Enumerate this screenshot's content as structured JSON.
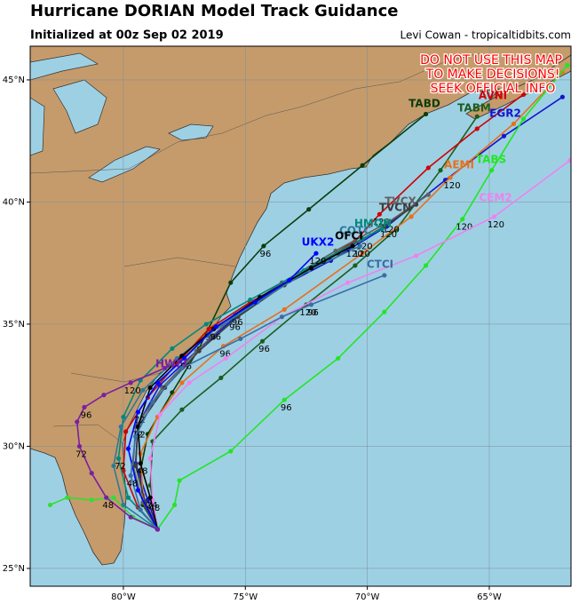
{
  "header": {
    "title": "Hurricane DORIAN Model Track Guidance",
    "subtitle": "Initialized at 00z Sep 02 2019",
    "credit": "Levi Cowan - tropicaltidbits.com"
  },
  "warning": [
    "DO NOT USE THIS MAP",
    "TO MAKE DECISIONS!",
    "SEEK OFFICIAL INFO"
  ],
  "map": {
    "xlim": [
      -83.82,
      -61.65
    ],
    "ylim": [
      24.27,
      46.38
    ],
    "xticks": [
      {
        "value": -80,
        "label": "80°W"
      },
      {
        "value": -75,
        "label": "75°W"
      },
      {
        "value": -70,
        "label": "70°W"
      },
      {
        "value": -65,
        "label": "65°W"
      }
    ],
    "yticks": [
      {
        "value": 25,
        "label": "25°N"
      },
      {
        "value": 30,
        "label": "30°N"
      },
      {
        "value": 35,
        "label": "35°N"
      },
      {
        "value": 40,
        "label": "40°N"
      },
      {
        "value": 45,
        "label": "45°N"
      }
    ],
    "grid": true,
    "tracks": [
      {
        "name": "TABD",
        "color": "#0b3d0b",
        "lon": [
          -78.6,
          -79.2,
          -79.3,
          -79.0,
          -78.0,
          -76.9,
          -75.6,
          -74.25,
          -72.4,
          -70.2,
          -67.6
        ],
        "lat": [
          26.6,
          27.6,
          29.0,
          30.5,
          32.2,
          34.0,
          36.7,
          38.2,
          39.7,
          41.5,
          43.6
        ],
        "hours": [
          null,
          null,
          null,
          null,
          null,
          null,
          null,
          96,
          null,
          null,
          null
        ]
      },
      {
        "name": "TABM",
        "color": "#1b5e20",
        "lon": [
          -78.6,
          -78.9,
          -78.8,
          -77.6,
          -76.0,
          -74.3,
          -72.5,
          -70.5,
          -68.8,
          -67.0,
          -65.5
        ],
        "lat": [
          26.6,
          28.4,
          30.2,
          31.5,
          32.8,
          34.3,
          35.8,
          37.4,
          38.9,
          41.3,
          43.5
        ],
        "hours": [
          null,
          null,
          null,
          null,
          null,
          96,
          120,
          null,
          null,
          null,
          null
        ]
      },
      {
        "name": "AVNI",
        "color": "#d00000",
        "lon": [
          -78.6,
          -79.4,
          -80.0,
          -79.9,
          -79.0,
          -77.8,
          -76.5,
          -74.8,
          -72.6,
          -70.5,
          -69.5,
          -67.5,
          -65.5,
          -63.6
        ],
        "lat": [
          26.6,
          27.5,
          29.0,
          30.6,
          32.0,
          33.4,
          34.8,
          35.9,
          37.1,
          38.4,
          39.5,
          41.4,
          43.0,
          44.4
        ],
        "hours": [
          null,
          null,
          null,
          null,
          null,
          null,
          96,
          null,
          null,
          null,
          120,
          null,
          null,
          null
        ]
      },
      {
        "name": "EGR2",
        "color": "#1414d0",
        "lon": [
          -78.6,
          -79.0,
          -79.5,
          -79.4,
          -78.5,
          -77.0,
          -75.5,
          -73.8,
          -71.5,
          -69.2,
          -66.8,
          -64.4,
          -62.0
        ],
        "lat": [
          26.6,
          27.8,
          29.3,
          30.9,
          32.5,
          33.9,
          35.2,
          36.4,
          37.6,
          39.0,
          40.9,
          42.7,
          44.3
        ],
        "hours": [
          null,
          null,
          null,
          null,
          null,
          null,
          96,
          null,
          null,
          120,
          null,
          null,
          null
        ]
      },
      {
        "name": "AEMI",
        "color": "#e8701a",
        "lon": [
          -78.6,
          -79.2,
          -79.3,
          -78.6,
          -77.6,
          -75.9,
          -73.4,
          -70.2,
          -68.2,
          -66.6,
          -64.0,
          -62.0
        ],
        "lat": [
          26.6,
          28.0,
          29.7,
          31.2,
          32.6,
          34.1,
          35.6,
          37.9,
          39.4,
          41.0,
          43.2,
          45.3
        ],
        "hours": [
          null,
          null,
          null,
          null,
          null,
          96,
          null,
          null,
          null,
          120,
          null,
          null
        ]
      },
      {
        "name": "TABS",
        "color": "#22e622",
        "lon": [
          -78.6,
          -77.9,
          -77.7,
          -75.6,
          -73.4,
          -71.2,
          -69.3,
          -67.6,
          -66.1,
          -64.9,
          -63.6,
          -61.8
        ],
        "lat": [
          26.6,
          27.6,
          28.6,
          29.8,
          31.9,
          33.6,
          35.5,
          37.4,
          39.3,
          41.3,
          43.4,
          45.6
        ],
        "hours": [
          null,
          null,
          null,
          null,
          96,
          null,
          null,
          null,
          120,
          null,
          null,
          null
        ]
      },
      {
        "color": "#33dd33",
        "lon": [
          -78.6,
          -79.6,
          -80.4,
          -81.3,
          -82.3,
          -83.0
        ],
        "lat": [
          26.6,
          27.1,
          27.9,
          27.8,
          27.9,
          27.6
        ],
        "hours": [
          null,
          null,
          null,
          null,
          null,
          null
        ]
      },
      {
        "name": "CEM2",
        "color": "#ee82ee",
        "lon": [
          -78.6,
          -78.8,
          -78.9,
          -78.5,
          -77.3,
          -75.8,
          -73.5,
          -70.8,
          -68.0,
          -64.8,
          -61.7
        ],
        "lat": [
          26.6,
          27.8,
          29.5,
          31.3,
          32.6,
          33.6,
          35.3,
          36.7,
          37.8,
          39.4,
          41.7
        ],
        "hours": [
          null,
          48,
          null,
          null,
          null,
          null,
          null,
          null,
          null,
          120,
          null
        ]
      },
      {
        "name": "TVCX",
        "color": "#606060",
        "lon": [
          -78.6,
          -79.2,
          -79.6,
          -79.5,
          -78.4,
          -77.0,
          -75.4,
          -73.5,
          -71.3,
          -69.1,
          -67.5
        ],
        "lat": [
          26.6,
          27.7,
          29.2,
          30.8,
          32.4,
          33.9,
          35.4,
          36.7,
          38.0,
          39.2,
          40.3
        ],
        "hours": [
          null,
          null,
          null,
          72,
          null,
          null,
          96,
          null,
          null,
          120,
          null
        ]
      },
      {
        "name": "TVCN",
        "color": "#3c3c3c",
        "lon": [
          -78.6,
          -79.1,
          -79.5,
          -79.4,
          -78.3,
          -76.9,
          -75.3,
          -73.4,
          -71.2,
          -69.3,
          -68.0
        ],
        "lat": [
          26.6,
          27.7,
          29.2,
          30.8,
          32.4,
          33.9,
          35.3,
          36.6,
          37.9,
          39.0,
          39.9
        ],
        "hours": [
          null,
          null,
          null,
          null,
          null,
          null,
          null,
          null,
          null,
          null,
          null
        ]
      },
      {
        "name": "HMON",
        "color": "#00897b",
        "lon": [
          -78.6,
          -79.8,
          -80.2,
          -80.0,
          -79.3,
          -78.0,
          -76.6,
          -74.8,
          -72.6,
          -70.2,
          -69.4
        ],
        "lat": [
          26.6,
          27.9,
          29.5,
          31.2,
          32.7,
          34.0,
          35.0,
          36.0,
          37.2,
          38.5,
          38.9
        ],
        "hours": [
          null,
          null,
          72,
          null,
          null,
          null,
          null,
          null,
          null,
          120,
          null
        ]
      },
      {
        "name": "COTC",
        "color": "#2b7a9b",
        "lon": [
          -78.6,
          -80.0,
          -80.4,
          -80.1,
          -79.2,
          -77.8,
          -76.5,
          -74.5,
          -72.4,
          -70.3
        ],
        "lat": [
          26.6,
          27.6,
          29.2,
          30.8,
          32.3,
          33.6,
          34.6,
          35.9,
          37.2,
          38.2
        ],
        "hours": [
          null,
          null,
          null,
          null,
          null,
          null,
          null,
          null,
          null,
          120
        ]
      },
      {
        "name": "OFCI",
        "color": "#000000",
        "lon": [
          -78.6,
          -78.9,
          -79.3,
          -79.4,
          -78.9,
          -77.6,
          -76.3,
          -74.4,
          -72.3,
          -70.6
        ],
        "lat": [
          26.6,
          27.9,
          29.3,
          30.8,
          32.4,
          33.7,
          34.8,
          36.1,
          37.3,
          38.2
        ],
        "hours": [
          null,
          24,
          48,
          72,
          null,
          null,
          96,
          null,
          null,
          120
        ]
      },
      {
        "name": "UKX2",
        "color": "#0000ff",
        "lon": [
          -78.6,
          -79.4,
          -79.8,
          -79.4,
          -78.6,
          -77.5,
          -76.2,
          -74.6,
          -73.2,
          -72.1
        ],
        "lat": [
          26.6,
          28.2,
          29.9,
          31.4,
          32.6,
          33.6,
          34.9,
          35.9,
          36.8,
          37.9
        ],
        "hours": [
          null,
          null,
          null,
          72,
          null,
          96,
          null,
          null,
          null,
          120
        ]
      },
      {
        "name": "CTCI",
        "color": "#3a6ea5",
        "lon": [
          -78.6,
          -79.3,
          -79.7,
          -79.5,
          -78.8,
          -77.6,
          -75.2,
          -73.5,
          -72.3,
          -69.3
        ],
        "lat": [
          26.6,
          27.4,
          28.8,
          30.4,
          31.8,
          33.2,
          34.4,
          35.3,
          35.8,
          37.0
        ],
        "hours": [
          null,
          null,
          48,
          null,
          null,
          null,
          null,
          null,
          96,
          null
        ]
      },
      {
        "name": "HWFI",
        "color": "#7b1fa2",
        "lon": [
          -78.6,
          -79.7,
          -80.7,
          -81.3,
          -81.8,
          -81.9,
          -81.6,
          -80.8,
          -79.7,
          -78.3
        ],
        "lat": [
          26.6,
          27.1,
          27.9,
          28.9,
          30.0,
          31.0,
          31.6,
          32.1,
          32.6,
          33.2
        ],
        "hours": [
          null,
          null,
          48,
          null,
          72,
          null,
          96,
          null,
          120,
          null
        ]
      }
    ]
  }
}
